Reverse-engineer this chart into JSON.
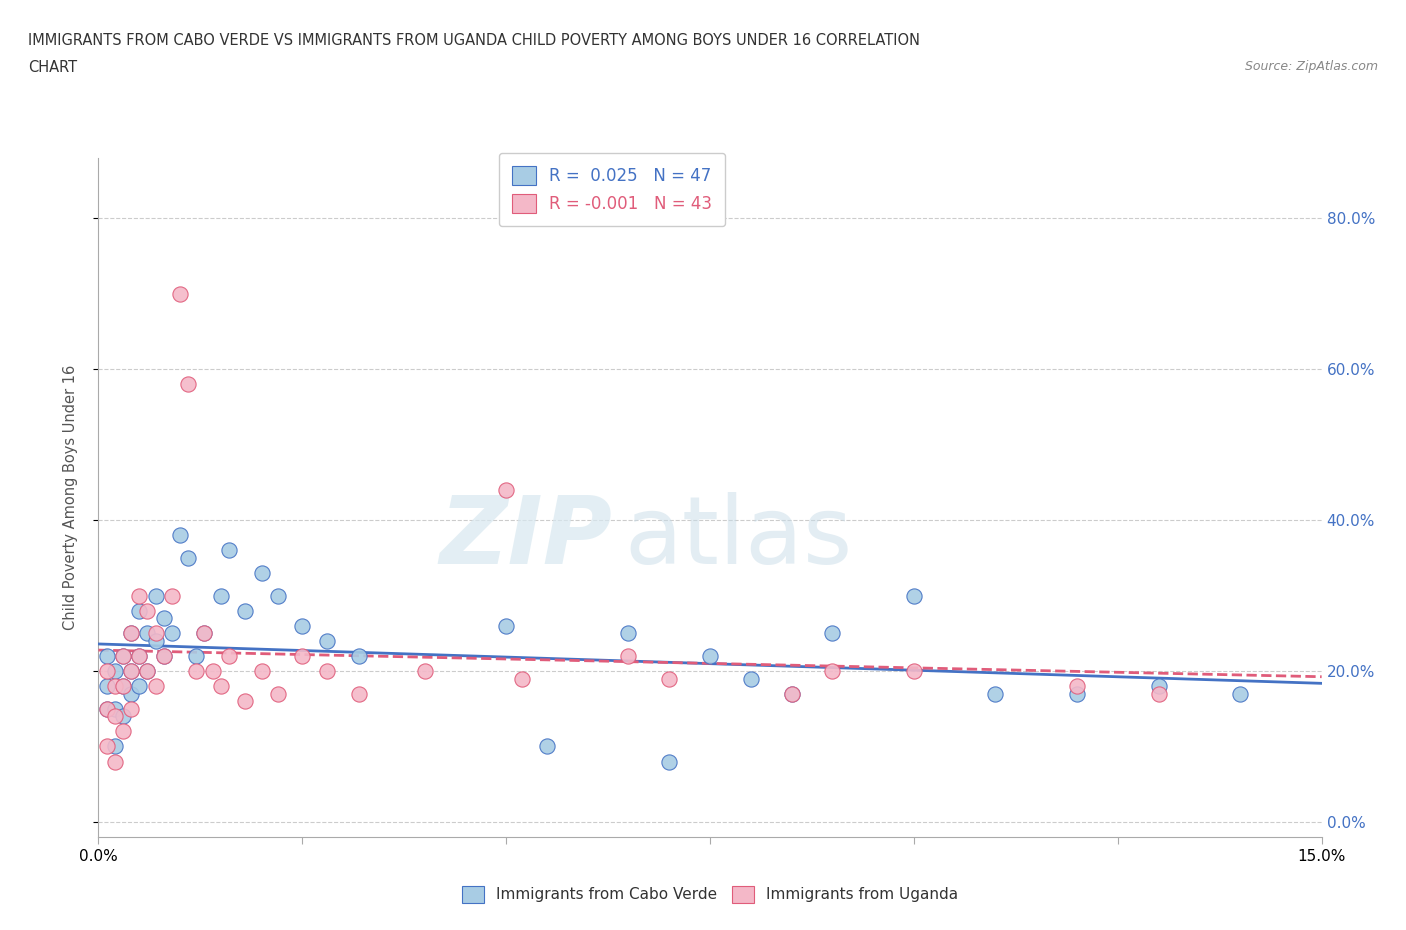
{
  "title_line1": "IMMIGRANTS FROM CABO VERDE VS IMMIGRANTS FROM UGANDA CHILD POVERTY AMONG BOYS UNDER 16 CORRELATION",
  "title_line2": "CHART",
  "source_text": "Source: ZipAtlas.com",
  "ylabel": "Child Poverty Among Boys Under 16",
  "legend_label1": "Immigrants from Cabo Verde",
  "legend_label2": "Immigrants from Uganda",
  "R1": "0.025",
  "N1": "47",
  "R2": "-0.001",
  "N2": "43",
  "color1": "#a8cce4",
  "color2": "#f4b8c8",
  "trendline1_color": "#4472c4",
  "trendline2_color": "#e05c7a",
  "xmin": 0.0,
  "xmax": 0.15,
  "ymin": -0.02,
  "ymax": 0.88,
  "yticks": [
    0.0,
    0.2,
    0.4,
    0.6,
    0.8
  ],
  "ytick_labels": [
    "0.0%",
    "20.0%",
    "40.0%",
    "60.0%",
    "80.0%"
  ],
  "xtick_positions": [
    0.0,
    0.025,
    0.05,
    0.075,
    0.1,
    0.125,
    0.15
  ],
  "watermark_zip": "ZIP",
  "watermark_atlas": "atlas",
  "cabo_verde_x": [
    0.001,
    0.001,
    0.001,
    0.002,
    0.002,
    0.002,
    0.003,
    0.003,
    0.003,
    0.004,
    0.004,
    0.004,
    0.005,
    0.005,
    0.005,
    0.006,
    0.006,
    0.007,
    0.007,
    0.008,
    0.008,
    0.009,
    0.01,
    0.011,
    0.012,
    0.013,
    0.015,
    0.016,
    0.018,
    0.02,
    0.022,
    0.025,
    0.028,
    0.032,
    0.05,
    0.055,
    0.065,
    0.07,
    0.075,
    0.08,
    0.085,
    0.09,
    0.1,
    0.11,
    0.12,
    0.13,
    0.14
  ],
  "cabo_verde_y": [
    0.22,
    0.18,
    0.15,
    0.2,
    0.15,
    0.1,
    0.22,
    0.18,
    0.14,
    0.25,
    0.2,
    0.17,
    0.28,
    0.22,
    0.18,
    0.25,
    0.2,
    0.3,
    0.24,
    0.27,
    0.22,
    0.25,
    0.38,
    0.35,
    0.22,
    0.25,
    0.3,
    0.36,
    0.28,
    0.33,
    0.3,
    0.26,
    0.24,
    0.22,
    0.26,
    0.1,
    0.25,
    0.08,
    0.22,
    0.19,
    0.17,
    0.25,
    0.3,
    0.17,
    0.17,
    0.18,
    0.17
  ],
  "uganda_x": [
    0.001,
    0.001,
    0.001,
    0.002,
    0.002,
    0.002,
    0.003,
    0.003,
    0.003,
    0.004,
    0.004,
    0.004,
    0.005,
    0.005,
    0.006,
    0.006,
    0.007,
    0.007,
    0.008,
    0.009,
    0.01,
    0.011,
    0.012,
    0.013,
    0.014,
    0.015,
    0.016,
    0.018,
    0.02,
    0.022,
    0.025,
    0.028,
    0.032,
    0.04,
    0.05,
    0.052,
    0.065,
    0.07,
    0.085,
    0.09,
    0.1,
    0.12,
    0.13
  ],
  "uganda_y": [
    0.2,
    0.15,
    0.1,
    0.18,
    0.14,
    0.08,
    0.22,
    0.18,
    0.12,
    0.25,
    0.2,
    0.15,
    0.3,
    0.22,
    0.28,
    0.2,
    0.25,
    0.18,
    0.22,
    0.3,
    0.7,
    0.58,
    0.2,
    0.25,
    0.2,
    0.18,
    0.22,
    0.16,
    0.2,
    0.17,
    0.22,
    0.2,
    0.17,
    0.2,
    0.44,
    0.19,
    0.22,
    0.19,
    0.17,
    0.2,
    0.2,
    0.18,
    0.17
  ]
}
